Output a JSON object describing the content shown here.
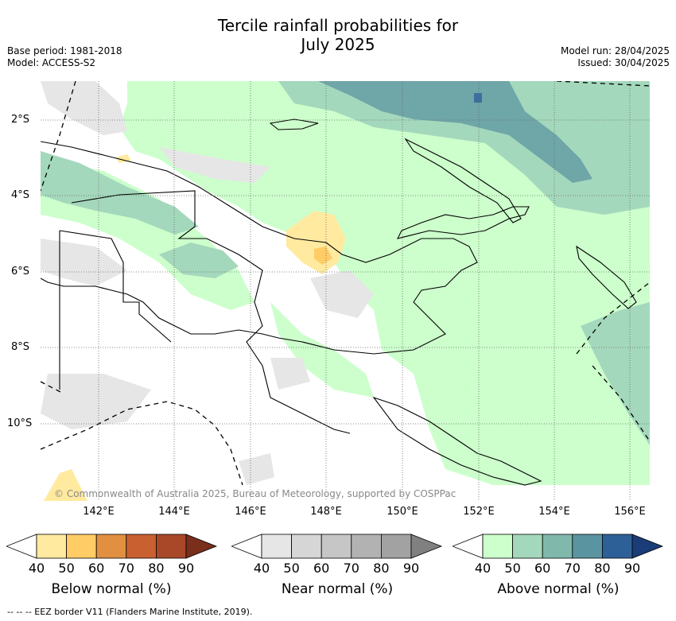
{
  "header": {
    "title_line1": "Tercile rainfall probabilities for",
    "title_line2": "July 2025",
    "base_period": "Base period: 1981-2018",
    "model": "Model: ACCESS-S2",
    "model_run": "Model run: 28/04/2025",
    "issued": "Issued: 30/04/2025"
  },
  "map": {
    "lat_labels": [
      "2°S",
      "4°S",
      "6°S",
      "8°S",
      "10°S"
    ],
    "lon_labels": [
      "142°E",
      "144°E",
      "146°E",
      "148°E",
      "150°E",
      "152°E",
      "154°E",
      "156°E"
    ],
    "copyright": "© Commonwealth of Australia 2025, Bureau of Meteorology, supported by COSPPac",
    "region": "Papua New Guinea"
  },
  "legends": [
    {
      "title": "Below normal (%)",
      "ticks": [
        "40",
        "50",
        "60",
        "70",
        "80",
        "90"
      ],
      "colors": [
        "#ffffff",
        "#ffeaa0",
        "#ffcc66",
        "#e09040",
        "#c86030",
        "#a84828",
        "#7a2e1c"
      ]
    },
    {
      "title": "Near normal (%)",
      "ticks": [
        "40",
        "50",
        "60",
        "70",
        "80",
        "90"
      ],
      "colors": [
        "#ffffff",
        "#e6e6e6",
        "#d6d6d6",
        "#c6c6c6",
        "#b2b2b2",
        "#a2a2a2",
        "#808080"
      ]
    },
    {
      "title": "Above normal (%)",
      "ticks": [
        "40",
        "50",
        "60",
        "70",
        "80",
        "90"
      ],
      "colors": [
        "#ffffff",
        "#ccffcc",
        "#a4d8bc",
        "#80b8ac",
        "#5a94a0",
        "#2e6098",
        "#1a3c78"
      ]
    }
  ],
  "footnote": "--  --  -- EEZ border V11 (Flanders Marine Institute, 2019)."
}
